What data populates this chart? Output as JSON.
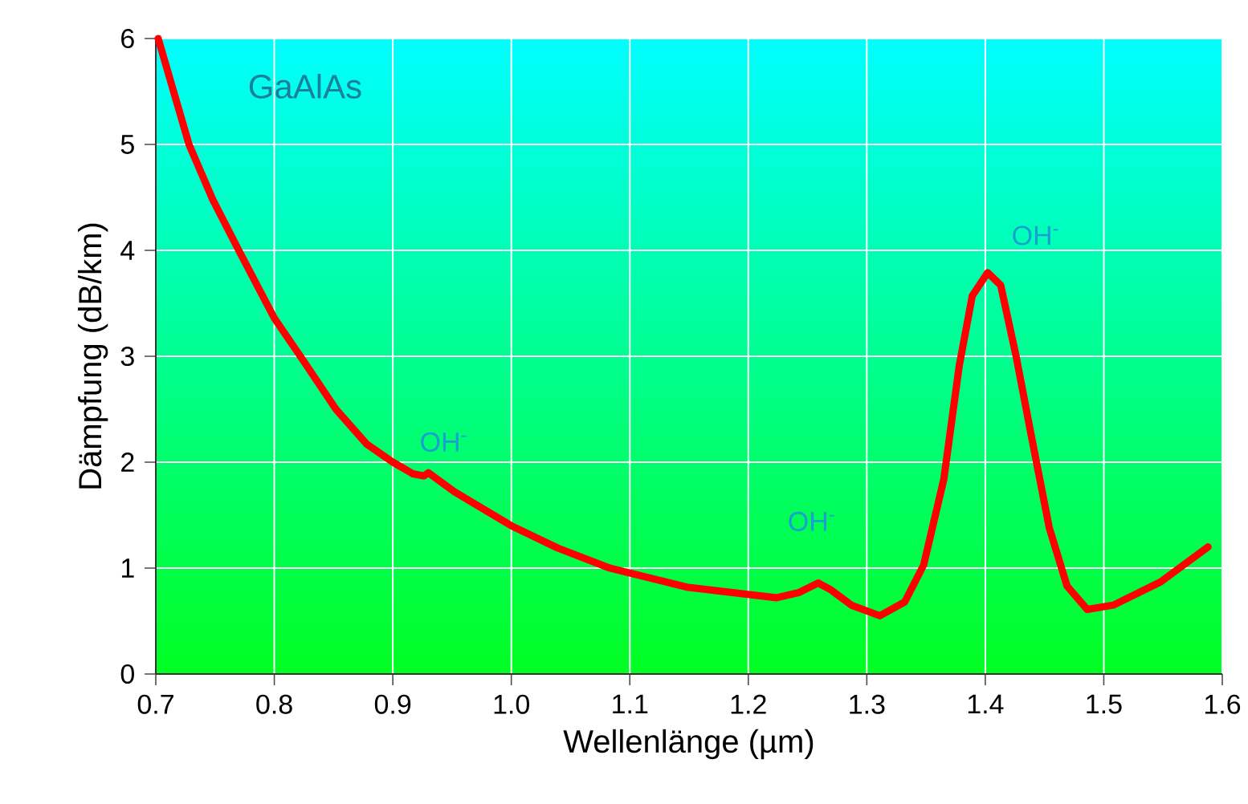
{
  "chart_data": {
    "type": "line",
    "xlabel": "Wellenlänge (µm)",
    "ylabel": "Dämpfung (dB/km)",
    "xlim": [
      0.7,
      1.6
    ],
    "ylim": [
      0,
      6
    ],
    "xticks": [
      0.7,
      0.8,
      0.9,
      {
        "value": 1.0,
        "label": "1.0"
      },
      1.1,
      1.2,
      1.3,
      1.4,
      1.5,
      1.6
    ],
    "yticks": [
      0,
      1,
      2,
      3,
      4,
      5,
      6
    ],
    "grid": true,
    "marker": "none",
    "line_style": "solid",
    "annotations": [
      "GaAlAs",
      "OH$^{-}$",
      "OH$^{-}$",
      "OH$^{-}$"
    ],
    "series": [
      {
        "color": "#ff0000",
        "x": [
          0.702,
          0.728,
          0.748,
          0.77,
          0.8,
          0.822,
          0.852,
          0.878,
          0.9,
          0.917,
          0.926,
          0.93,
          0.952,
          1.0,
          1.039,
          1.083,
          1.148,
          1.224,
          1.243,
          1.259,
          1.262,
          1.269,
          1.287,
          1.311,
          1.332,
          1.348,
          1.365,
          1.378,
          1.389,
          1.402,
          1.413,
          1.426,
          1.439,
          1.454,
          1.469,
          1.486,
          1.508,
          1.548,
          1.588
        ],
        "values": [
          6.0,
          5.0,
          4.48,
          4.0,
          3.36,
          3.0,
          2.5,
          2.17,
          2.0,
          1.89,
          1.87,
          1.9,
          1.72,
          1.4,
          1.19,
          1.0,
          0.82,
          0.72,
          0.77,
          0.86,
          0.84,
          0.8,
          0.65,
          0.55,
          0.68,
          1.03,
          1.84,
          2.91,
          3.57,
          3.79,
          3.67,
          3.0,
          2.24,
          1.38,
          0.83,
          0.61,
          0.65,
          0.87,
          1.2
        ]
      }
    ]
  }
}
